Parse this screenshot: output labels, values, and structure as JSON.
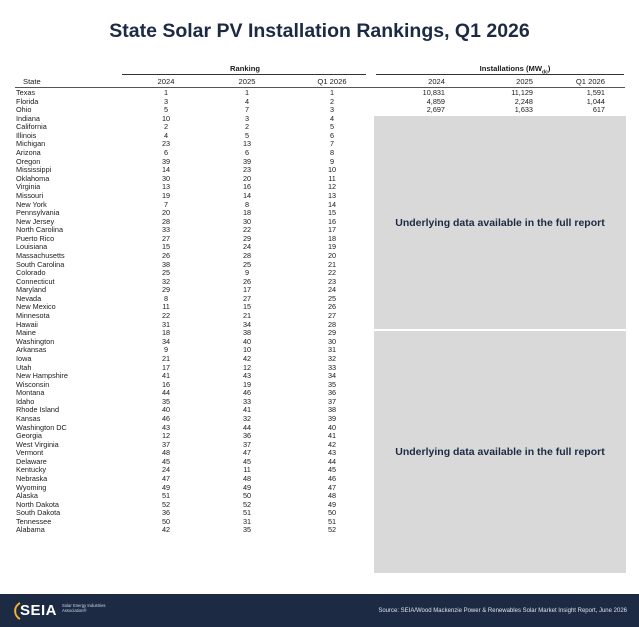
{
  "title": "State Solar PV Installation Rankings, Q1 2026",
  "groups": {
    "ranking": "Ranking",
    "installations": "Installations (MW",
    "installations_sub": "dc",
    "installations_close": ")"
  },
  "headers": {
    "state": "State",
    "r2024": "2024",
    "r2025": "2025",
    "rq1": "Q1 2026",
    "i2024": "2024",
    "i2025": "2025",
    "iq1": "Q1 2026"
  },
  "gray_note_1": "Underlying data available in the full report",
  "gray_note_2": "Underlying data available in the full report",
  "footer": {
    "logo": "SEIA",
    "logo_sub": "Solar Energy Industries Association®",
    "source": "Source: SEIA/Wood Mackenzie Power & Renewables Solar Market Insight Report, June 2026"
  },
  "colors": {
    "navy": "#1c2a44",
    "gray_block": "#d9d9d9"
  },
  "chart_data": {
    "type": "table",
    "title": "State Solar PV Installation Rankings, Q1 2026",
    "columns": [
      "State",
      "Ranking 2024",
      "Ranking 2025",
      "Ranking Q1 2026",
      "Installations 2024",
      "Installations 2025",
      "Installations Q1 2026"
    ],
    "rows": [
      [
        "Texas",
        "1",
        "1",
        "1",
        "10,831",
        "11,129",
        "1,591"
      ],
      [
        "Florida",
        "3",
        "4",
        "2",
        "4,859",
        "2,248",
        "1,044"
      ],
      [
        "Ohio",
        "5",
        "7",
        "3",
        "2,697",
        "1,633",
        "617"
      ],
      [
        "Indiana",
        "10",
        "3",
        "4",
        "",
        "",
        ""
      ],
      [
        "California",
        "2",
        "2",
        "5",
        "",
        "",
        ""
      ],
      [
        "Illinois",
        "4",
        "5",
        "6",
        "",
        "",
        ""
      ],
      [
        "Michigan",
        "23",
        "13",
        "7",
        "",
        "",
        ""
      ],
      [
        "Arizona",
        "6",
        "6",
        "8",
        "",
        "",
        ""
      ],
      [
        "Oregon",
        "39",
        "39",
        "9",
        "",
        "",
        ""
      ],
      [
        "Mississippi",
        "14",
        "23",
        "10",
        "",
        "",
        ""
      ],
      [
        "Oklahoma",
        "30",
        "20",
        "11",
        "",
        "",
        ""
      ],
      [
        "Virginia",
        "13",
        "16",
        "12",
        "",
        "",
        ""
      ],
      [
        "Missouri",
        "19",
        "14",
        "13",
        "",
        "",
        ""
      ],
      [
        "New York",
        "7",
        "8",
        "14",
        "",
        "",
        ""
      ],
      [
        "Pennsylvania",
        "20",
        "18",
        "15",
        "",
        "",
        ""
      ],
      [
        "New Jersey",
        "28",
        "30",
        "16",
        "",
        "",
        ""
      ],
      [
        "North Carolina",
        "33",
        "22",
        "17",
        "",
        "",
        ""
      ],
      [
        "Puerto Rico",
        "27",
        "29",
        "18",
        "",
        "",
        ""
      ],
      [
        "Louisiana",
        "15",
        "24",
        "19",
        "",
        "",
        ""
      ],
      [
        "Massachusetts",
        "26",
        "28",
        "20",
        "",
        "",
        ""
      ],
      [
        "South Carolina",
        "38",
        "25",
        "21",
        "",
        "",
        ""
      ],
      [
        "Colorado",
        "25",
        "9",
        "22",
        "",
        "",
        ""
      ],
      [
        "Connecticut",
        "32",
        "26",
        "23",
        "",
        "",
        ""
      ],
      [
        "Maryland",
        "29",
        "17",
        "24",
        "",
        "",
        ""
      ],
      [
        "Nevada",
        "8",
        "27",
        "25",
        "",
        "",
        ""
      ],
      [
        "New Mexico",
        "11",
        "15",
        "26",
        "",
        "",
        ""
      ],
      [
        "Minnesota",
        "22",
        "21",
        "27",
        "",
        "",
        ""
      ],
      [
        "Hawaii",
        "31",
        "34",
        "28",
        "",
        "",
        ""
      ],
      [
        "Maine",
        "18",
        "38",
        "29",
        "",
        "",
        ""
      ],
      [
        "Washington",
        "34",
        "40",
        "30",
        "",
        "",
        ""
      ],
      [
        "Arkansas",
        "9",
        "10",
        "31",
        "",
        "",
        ""
      ],
      [
        "Iowa",
        "21",
        "42",
        "32",
        "",
        "",
        ""
      ],
      [
        "Utah",
        "17",
        "12",
        "33",
        "",
        "",
        ""
      ],
      [
        "New Hampshire",
        "41",
        "43",
        "34",
        "",
        "",
        ""
      ],
      [
        "Wisconsin",
        "16",
        "19",
        "35",
        "",
        "",
        ""
      ],
      [
        "Montana",
        "44",
        "46",
        "36",
        "",
        "",
        ""
      ],
      [
        "Idaho",
        "35",
        "33",
        "37",
        "",
        "",
        ""
      ],
      [
        "Rhode Island",
        "40",
        "41",
        "38",
        "",
        "",
        ""
      ],
      [
        "Kansas",
        "46",
        "32",
        "39",
        "",
        "",
        ""
      ],
      [
        "Washington DC",
        "43",
        "44",
        "40",
        "",
        "",
        ""
      ],
      [
        "Georgia",
        "12",
        "36",
        "41",
        "",
        "",
        ""
      ],
      [
        "West Virginia",
        "37",
        "37",
        "42",
        "",
        "",
        ""
      ],
      [
        "Vermont",
        "48",
        "47",
        "43",
        "",
        "",
        ""
      ],
      [
        "Delaware",
        "45",
        "45",
        "44",
        "",
        "",
        ""
      ],
      [
        "Kentucky",
        "24",
        "11",
        "45",
        "",
        "",
        ""
      ],
      [
        "Nebraska",
        "47",
        "48",
        "46",
        "",
        "",
        ""
      ],
      [
        "Wyoming",
        "49",
        "49",
        "47",
        "",
        "",
        ""
      ],
      [
        "Alaska",
        "51",
        "50",
        "48",
        "",
        "",
        ""
      ],
      [
        "North Dakota",
        "52",
        "52",
        "49",
        "",
        "",
        ""
      ],
      [
        "South Dakota",
        "36",
        "51",
        "50",
        "",
        "",
        ""
      ],
      [
        "Tennessee",
        "50",
        "31",
        "51",
        "",
        "",
        ""
      ],
      [
        "Alabama",
        "42",
        "35",
        "52",
        "",
        "",
        ""
      ]
    ]
  }
}
